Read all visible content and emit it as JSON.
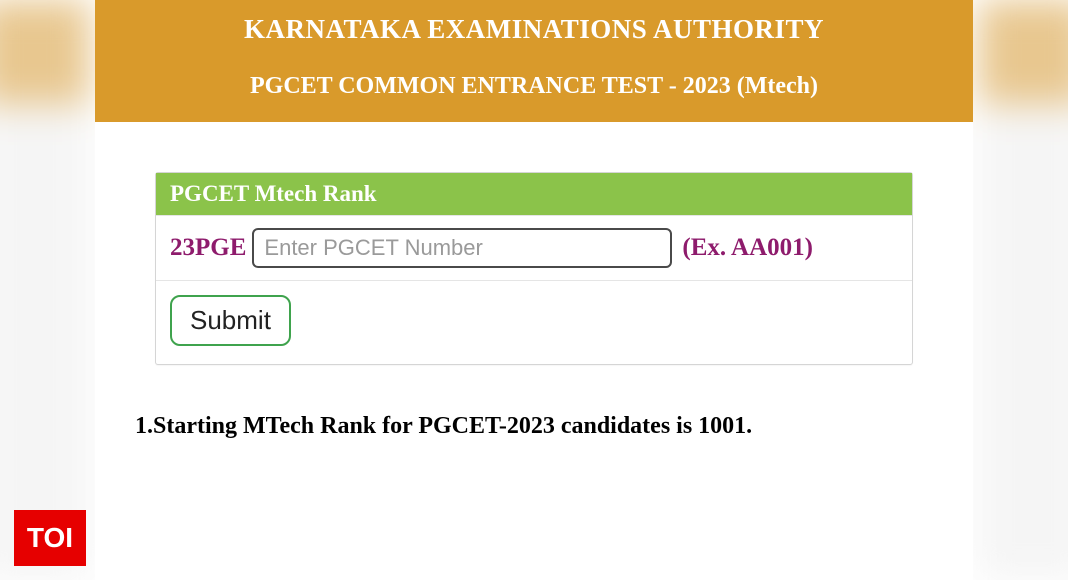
{
  "colors": {
    "header_bg": "#d99a2b",
    "header_text": "#ffffff",
    "form_title_bg": "#8bc34a",
    "form_title_text": "#ffffff",
    "accent_text": "#8e1b6c",
    "submit_border": "#3fa34d",
    "toi_bg": "#e60000",
    "toi_text": "#ffffff"
  },
  "header": {
    "authority": "KARNATAKA EXAMINATIONS AUTHORITY",
    "test_title": "PGCET COMMON ENTRANCE TEST - 2023 (Mtech)"
  },
  "form": {
    "title": "PGCET Mtech Rank",
    "prefix": "23PGE",
    "placeholder": "Enter PGCET Number",
    "hint": "(Ex. AA001)",
    "submit_label": "Submit"
  },
  "note": "1.Starting MTech Rank for PGCET-2023 candidates is 1001.",
  "badge": {
    "text": "TOI"
  }
}
